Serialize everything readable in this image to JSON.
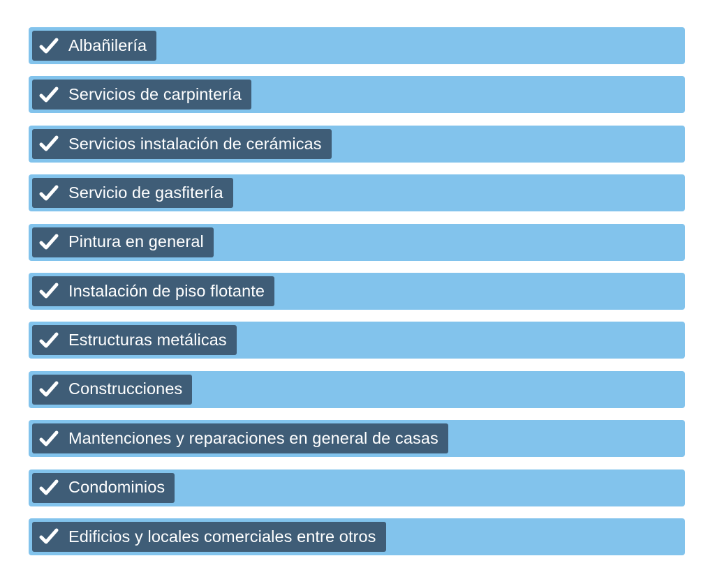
{
  "services": {
    "items": [
      {
        "label": "Albañilería",
        "icon": "check-icon"
      },
      {
        "label": "Servicios de carpintería",
        "icon": "check-icon"
      },
      {
        "label": "Servicios instalación de cerámicas",
        "icon": "check-icon"
      },
      {
        "label": "Servicio de gasfitería",
        "icon": "check-icon"
      },
      {
        "label": "Pintura en general",
        "icon": "check-icon"
      },
      {
        "label": "Instalación de piso flotante",
        "icon": "check-icon"
      },
      {
        "label": "Estructuras metálicas",
        "icon": "check-icon"
      },
      {
        "label": "Construcciones",
        "icon": "check-icon"
      },
      {
        "label": "Mantenciones y reparaciones en general de casas",
        "icon": "check-icon"
      },
      {
        "label": "Condominios",
        "icon": "check-icon"
      },
      {
        "label": "Edificios y locales comerciales entre otros",
        "icon": "check-icon"
      }
    ]
  },
  "colors": {
    "row_background": "#82c3ec",
    "tag_background": "#3f5d77",
    "text": "#ffffff",
    "page_background": "#ffffff"
  }
}
